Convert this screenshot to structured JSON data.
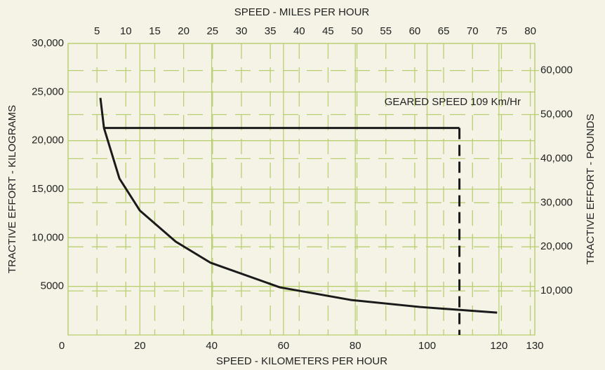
{
  "chart_data": {
    "type": "line",
    "top_axis_label": "SPEED - MILES PER HOUR",
    "xlabel": "SPEED - KILOMETERS PER HOUR",
    "ylabel": "TRACTIVE EFFORT - KILOGRAMS",
    "y2label": "TRACTIVE EFFORT - POUNDS",
    "annotation": "GEARED SPEED 109 Km/Hr",
    "xlim": [
      0,
      130
    ],
    "xticks": [
      0,
      20,
      40,
      60,
      80,
      100,
      120,
      130
    ],
    "x2lim": [
      0,
      80.78
    ],
    "x2ticks": [
      5,
      10,
      15,
      20,
      25,
      30,
      35,
      40,
      45,
      50,
      55,
      60,
      65,
      70,
      75,
      80
    ],
    "ylim": [
      0,
      30000
    ],
    "yticks": [
      {
        "value": 5000,
        "label": "5000"
      },
      {
        "value": 10000,
        "label": "10,000"
      },
      {
        "value": 15000,
        "label": "15,000"
      },
      {
        "value": 20000,
        "label": "20,000"
      },
      {
        "value": 25000,
        "label": "25,000"
      },
      {
        "value": 30000,
        "label": "30,000"
      }
    ],
    "y2lim": [
      0,
      66139
    ],
    "y2ticks": [
      {
        "value": 10000,
        "label": "10,000"
      },
      {
        "value": 20000,
        "label": "20,000"
      },
      {
        "value": 30000,
        "label": "30,000"
      },
      {
        "value": 40000,
        "label": "40,000"
      },
      {
        "value": 50000,
        "label": "50,000"
      },
      {
        "value": 60000,
        "label": "60,000"
      }
    ],
    "grid": true,
    "grid_color": "#b9cf72",
    "series": [
      {
        "color": "#1a1a1a",
        "x": [
          9,
          10,
          14.3,
          20,
          30,
          39.7,
          59,
          78.8,
          98,
          119.5
        ],
        "values": [
          24400,
          21300,
          16100,
          12800,
          9600,
          7430,
          4900,
          3600,
          2880,
          2300
        ]
      },
      {
        "color": "#1a1a1a",
        "x": [
          10,
          109
        ],
        "values": [
          21300,
          21300
        ]
      },
      {
        "color": "#1a1a1a",
        "dashed": true,
        "x": [
          109,
          109
        ],
        "values": [
          21300,
          0
        ]
      }
    ]
  }
}
